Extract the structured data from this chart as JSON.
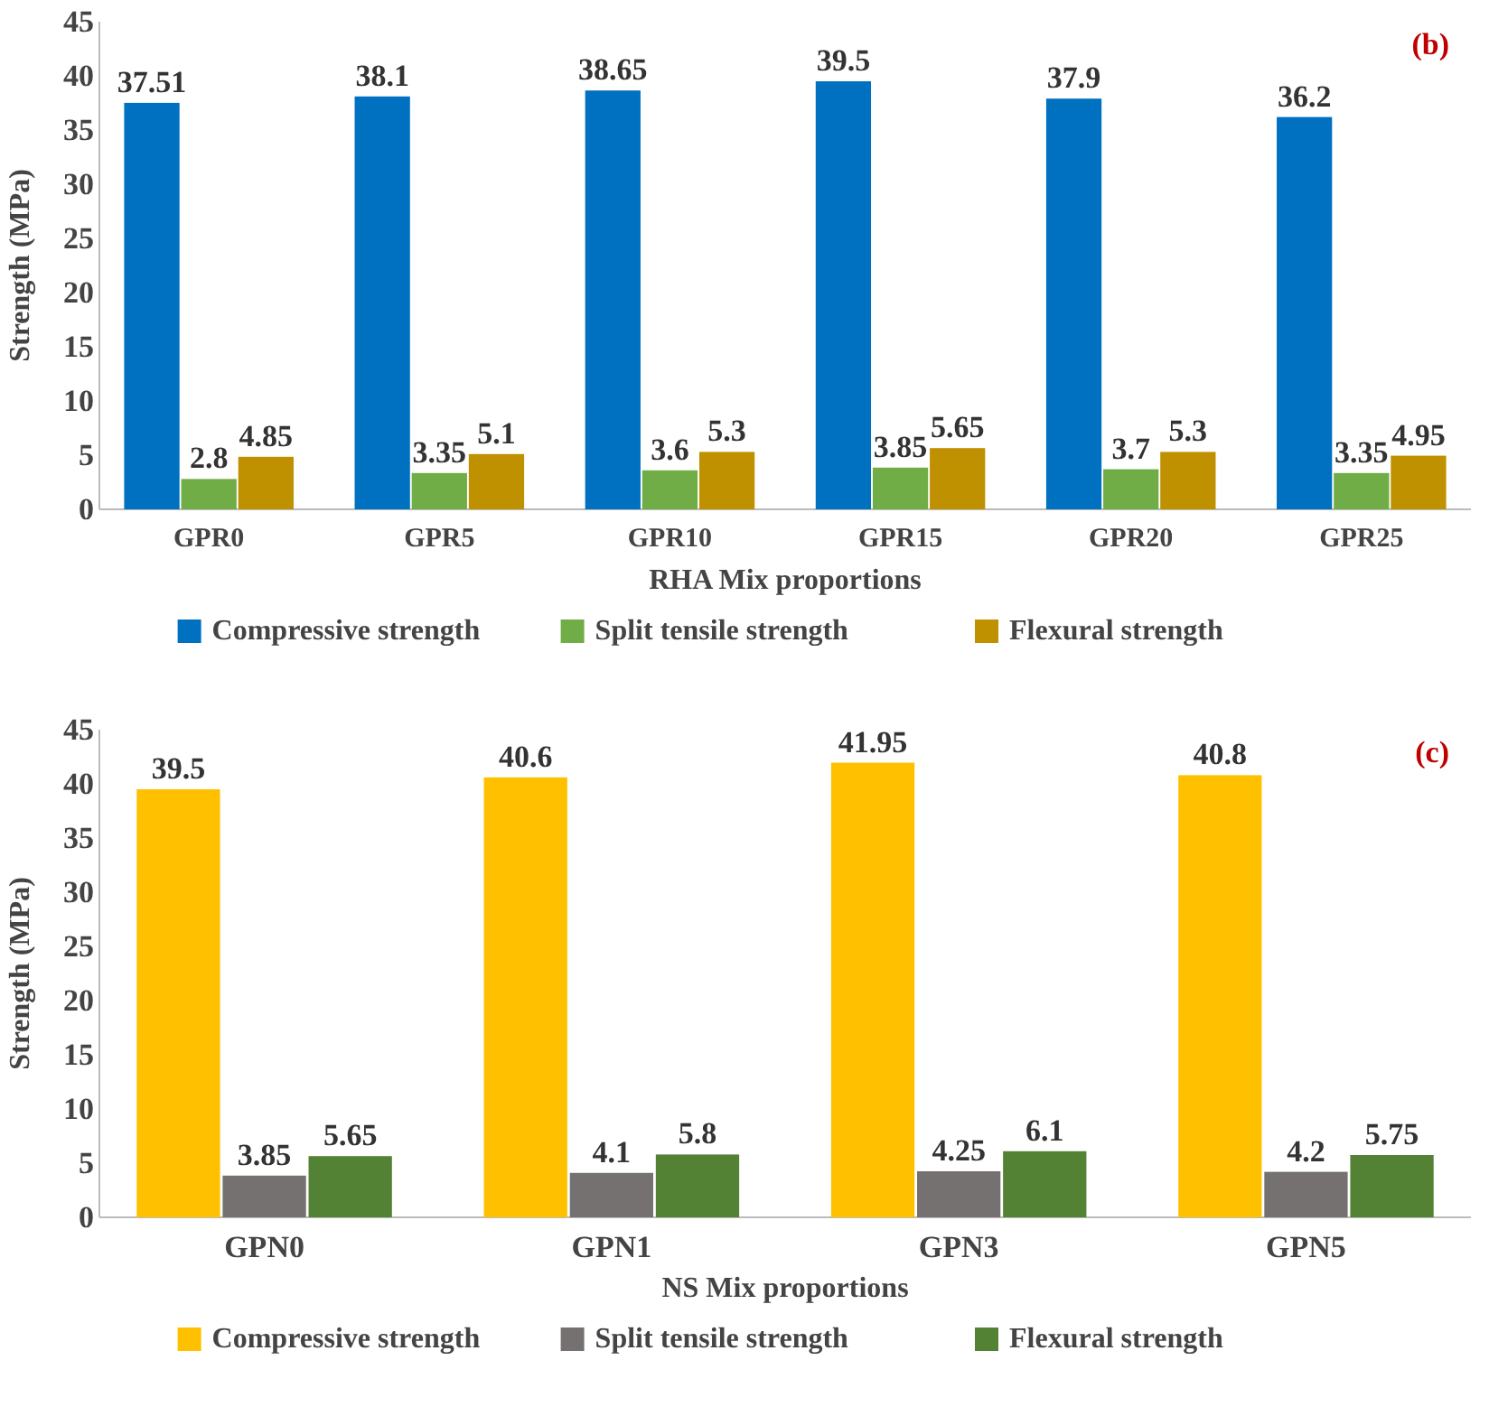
{
  "chart_data": [
    {
      "type": "bar",
      "xlabel": "RHA Mix proportions",
      "ylabel": "Strength (MPa)",
      "annotations": [
        "(b)"
      ],
      "categories": [
        "GPR0",
        "GPR5",
        "GPR10",
        "GPR15",
        "GPR20",
        "GPR25"
      ],
      "series": [
        {
          "name": "Compressive strength",
          "color": "#0070c0",
          "values": [
            37.51,
            38.1,
            38.65,
            39.5,
            37.9,
            36.2
          ]
        },
        {
          "name": "Split tensile strength",
          "color": "#70ad47",
          "values": [
            2.8,
            3.35,
            3.6,
            3.85,
            3.7,
            3.35
          ]
        },
        {
          "name": "Flexural strength",
          "color": "#bf9000",
          "values": [
            4.85,
            5.1,
            5.3,
            5.65,
            5.3,
            4.95
          ]
        }
      ],
      "ylim": [
        0,
        45
      ],
      "yticks": [
        0,
        5,
        10,
        15,
        20,
        25,
        30,
        35,
        40,
        45
      ],
      "data_labels": true,
      "legend": "bottom"
    },
    {
      "type": "bar",
      "xlabel": "NS Mix proportions",
      "ylabel": "Strength (MPa)",
      "annotations": [
        "(c)"
      ],
      "categories": [
        "GPN0",
        "GPN1",
        "GPN3",
        "GPN5"
      ],
      "series": [
        {
          "name": "Compressive strength",
          "color": "#ffc000",
          "values": [
            39.5,
            40.6,
            41.95,
            40.8
          ]
        },
        {
          "name": "Split tensile strength",
          "color": "#767171",
          "values": [
            3.85,
            4.1,
            4.25,
            4.2
          ]
        },
        {
          "name": "Flexural strength",
          "color": "#548235",
          "values": [
            5.65,
            5.8,
            6.1,
            5.75
          ]
        }
      ],
      "ylim": [
        0,
        45
      ],
      "yticks": [
        0,
        5,
        10,
        15,
        20,
        25,
        30,
        35,
        40,
        45
      ],
      "data_labels": true,
      "legend": "bottom"
    }
  ]
}
